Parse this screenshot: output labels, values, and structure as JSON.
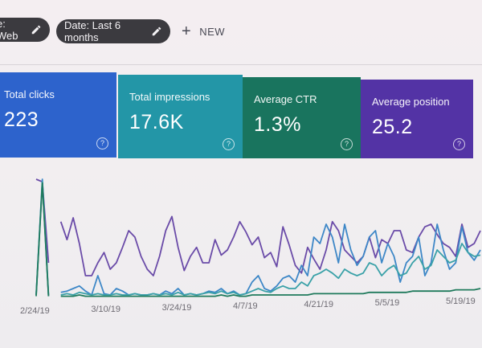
{
  "filters": {
    "type_chip": "e: Web",
    "date_chip": "Date: Last 6 months",
    "new_label": "NEW"
  },
  "metrics": {
    "clicks": {
      "label": "Total clicks",
      "value": "223",
      "color": "#2d63cc"
    },
    "impressions": {
      "label": "Total impressions",
      "value": "17.6K",
      "color": "#2396a7"
    },
    "ctr": {
      "label": "Average CTR",
      "value": "1.3%",
      "color": "#19745e"
    },
    "position": {
      "label": "Average position",
      "value": "25.2",
      "color": "#5333a5"
    },
    "help_icon": "question-mark-circle-icon"
  },
  "chart_data": {
    "type": "line",
    "x_tick_labels": [
      "2/24/19",
      "3/10/19",
      "3/24/19",
      "4/7/19",
      "4/21/19",
      "5/5/19",
      "5/19/19"
    ],
    "series": [
      {
        "color": "#6a4ba8",
        "values": [
          0.95,
          0.93,
          0.3,
          null,
          0.62,
          0.48,
          0.65,
          0.45,
          0.2,
          0.2,
          0.3,
          0.38,
          0.25,
          0.3,
          0.42,
          0.55,
          0.5,
          0.35,
          0.25,
          0.2,
          0.35,
          0.55,
          0.66,
          0.42,
          0.24,
          0.35,
          0.42,
          0.3,
          0.3,
          0.48,
          0.36,
          0.4,
          0.5,
          0.62,
          0.54,
          0.44,
          0.5,
          0.34,
          0.38,
          0.27,
          0.58,
          0.44,
          0.28,
          0.22,
          0.42,
          0.33,
          0.25,
          0.4,
          0.62,
          0.55,
          0.4,
          0.35,
          0.3,
          0.35,
          0.5,
          0.34,
          0.48,
          0.45,
          0.55,
          0.55,
          0.4,
          0.38,
          0.5,
          0.58,
          0.6,
          0.52,
          0.45,
          0.42,
          0.35,
          0.6,
          0.42,
          0.45,
          0.55
        ]
      },
      {
        "color": "#3d87c7",
        "values": [
          0.05,
          0.95,
          0.05,
          null,
          0.07,
          0.08,
          0.1,
          0.12,
          0.08,
          0.05,
          0.2,
          0.06,
          0.05,
          0.1,
          0.08,
          0.05,
          0.06,
          0.05,
          0.05,
          0.06,
          0.05,
          0.08,
          0.06,
          0.1,
          0.05,
          0.06,
          0.05,
          0.06,
          0.08,
          0.07,
          0.1,
          0.06,
          0.08,
          0.05,
          0.06,
          0.15,
          0.2,
          0.1,
          0.08,
          0.12,
          0.18,
          0.2,
          0.15,
          0.28,
          0.2,
          0.5,
          0.45,
          0.6,
          0.5,
          0.3,
          0.6,
          0.4,
          0.28,
          0.35,
          0.5,
          0.55,
          0.3,
          0.45,
          0.35,
          0.15,
          0.3,
          0.35,
          0.5,
          0.2,
          0.3,
          0.6,
          0.4,
          0.25,
          0.3,
          0.58,
          0.38,
          0.32,
          0.4
        ]
      },
      {
        "color": "#3aa1a8",
        "values": [
          0.05,
          0.93,
          0.04,
          null,
          0.05,
          0.06,
          0.05,
          0.07,
          0.06,
          0.05,
          0.06,
          0.05,
          0.05,
          0.06,
          0.05,
          0.05,
          0.06,
          0.05,
          0.05,
          0.06,
          0.05,
          0.06,
          0.05,
          0.07,
          0.05,
          0.06,
          0.05,
          0.06,
          0.07,
          0.06,
          0.08,
          0.06,
          0.07,
          0.05,
          0.06,
          0.08,
          0.1,
          0.08,
          0.07,
          0.1,
          0.12,
          0.1,
          0.1,
          0.15,
          0.12,
          0.2,
          0.22,
          0.25,
          0.22,
          0.18,
          0.25,
          0.22,
          0.2,
          0.22,
          0.3,
          0.28,
          0.2,
          0.25,
          0.28,
          0.2,
          0.22,
          0.3,
          0.35,
          0.25,
          0.28,
          0.4,
          0.35,
          0.3,
          0.32,
          0.45,
          0.38,
          0.35,
          0.36
        ]
      },
      {
        "color": "#1f7a5c",
        "values": [
          0.04,
          0.92,
          0.04,
          null,
          0.04,
          0.04,
          0.04,
          0.05,
          0.04,
          0.04,
          0.04,
          0.04,
          0.04,
          0.04,
          0.04,
          0.04,
          0.04,
          0.04,
          0.04,
          0.04,
          0.04,
          0.04,
          0.04,
          0.04,
          0.04,
          0.04,
          0.04,
          0.04,
          0.04,
          0.04,
          0.05,
          0.04,
          0.05,
          0.04,
          0.04,
          0.05,
          0.05,
          0.05,
          0.05,
          0.05,
          0.05,
          0.05,
          0.05,
          0.05,
          0.05,
          0.06,
          0.06,
          0.06,
          0.06,
          0.06,
          0.06,
          0.06,
          0.06,
          0.06,
          0.07,
          0.07,
          0.07,
          0.07,
          0.07,
          0.07,
          0.07,
          0.08,
          0.08,
          0.08,
          0.08,
          0.08,
          0.08,
          0.08,
          0.09,
          0.09,
          0.09,
          0.09,
          0.1
        ]
      }
    ]
  }
}
